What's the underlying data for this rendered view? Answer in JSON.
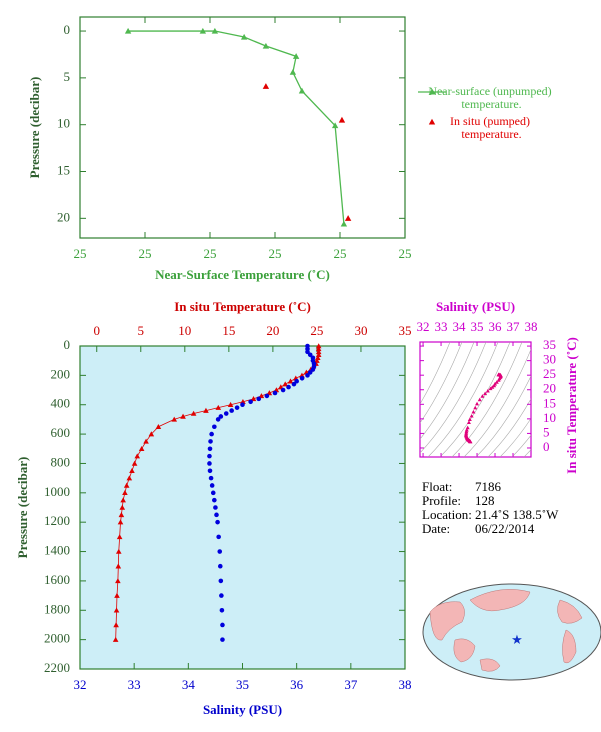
{
  "chart_data": [
    {
      "type": "line",
      "xlabel": "Near-Surface Temperature (˚C)",
      "ylabel": "Pressure (decibar)",
      "xlim": [
        24.5,
        25.5
      ],
      "xticks": [
        {
          "value": 24.5,
          "label": "25"
        },
        {
          "value": 24.7,
          "label": "25"
        },
        {
          "value": 24.9,
          "label": "25"
        },
        {
          "value": 25.1,
          "label": "25"
        },
        {
          "value": 25.3,
          "label": "25"
        },
        {
          "value": 25.5,
          "label": "25"
        }
      ],
      "ylim": [
        -1.5,
        22.1
      ],
      "yticks": [
        0,
        5,
        10,
        15,
        20
      ],
      "y_inverted": true,
      "legend": "right",
      "series": [
        {
          "name": "Near-surface (unpumped) temperature.",
          "color": "#4fb84f",
          "marker": "triangle",
          "connected": true,
          "values": [
            24.648,
            24.878,
            24.915,
            25.005,
            25.072,
            25.165,
            25.155,
            25.183,
            25.285,
            25.312
          ],
          "y": [
            0,
            0,
            0,
            0.64,
            1.6,
            2.7,
            4.4,
            6.4,
            10.1,
            20.6
          ]
        },
        {
          "name": "In situ (pumped) temperature.",
          "color": "#e00000",
          "marker": "triangle",
          "connected": false,
          "values": [
            25.072,
            25.306,
            25.325
          ],
          "y": [
            5.9,
            9.5,
            20.0
          ]
        }
      ]
    },
    {
      "type": "line",
      "xlabel": "Salinity (PSU)",
      "x2label": "In situ Temperature (˚C)",
      "ylabel": "Pressure (decibar)",
      "xlim": [
        32,
        38
      ],
      "xticks": [
        32,
        33,
        34,
        35,
        36,
        37,
        38
      ],
      "x2lim": [
        -1.9,
        35
      ],
      "x2ticks": [
        0,
        5,
        10,
        15,
        20,
        25,
        30,
        35
      ],
      "ylim": [
        0,
        2200
      ],
      "yticks": [
        0,
        200,
        400,
        600,
        800,
        1000,
        1200,
        1400,
        1600,
        1800,
        2000,
        2200
      ],
      "y_inverted": true,
      "y": [
        0,
        20,
        40,
        60,
        80,
        100,
        120,
        140,
        160,
        180,
        200,
        220,
        240,
        260,
        280,
        300,
        320,
        340,
        360,
        380,
        400,
        420,
        440,
        460,
        480,
        500,
        550,
        600,
        650,
        700,
        750,
        800,
        850,
        900,
        950,
        1000,
        1050,
        1100,
        1150,
        1200,
        1300,
        1400,
        1500,
        1600,
        1700,
        1800,
        1900,
        2000
      ],
      "series": [
        {
          "name": "In situ Temperature",
          "axis": "x2",
          "color": "#e00000",
          "marker": "triangle",
          "connected": true,
          "values": [
            25.2,
            25.2,
            25.2,
            25.2,
            25.1,
            25.0,
            24.9,
            24.6,
            24.3,
            23.8,
            23.3,
            22.6,
            22.0,
            21.4,
            20.9,
            20.4,
            19.6,
            18.7,
            17.8,
            16.6,
            15.2,
            13.8,
            12.4,
            11.0,
            9.8,
            8.8,
            7.0,
            6.2,
            5.6,
            5.1,
            4.6,
            4.3,
            4.0,
            3.7,
            3.4,
            3.2,
            3.0,
            2.9,
            2.8,
            2.7,
            2.6,
            2.5,
            2.45,
            2.4,
            2.3,
            2.25,
            2.2,
            2.15
          ]
        },
        {
          "name": "Salinity",
          "color": "#0000dd",
          "marker": "circle",
          "connected": false,
          "values": [
            36.2,
            36.2,
            36.2,
            36.25,
            36.3,
            36.3,
            36.32,
            36.32,
            36.3,
            36.25,
            36.2,
            36.1,
            36.0,
            35.95,
            35.85,
            35.75,
            35.6,
            35.45,
            35.3,
            35.15,
            35.0,
            34.9,
            34.8,
            34.7,
            34.6,
            34.55,
            34.48,
            34.43,
            34.41,
            34.4,
            34.39,
            34.39,
            34.4,
            34.42,
            34.44,
            34.46,
            34.48,
            34.5,
            34.52,
            34.54,
            34.56,
            34.58,
            34.59,
            34.6,
            34.61,
            34.62,
            34.63,
            34.63
          ]
        }
      ]
    },
    {
      "type": "scatter",
      "xlabel": "Salinity (PSU)",
      "ylabel": "In situ Temperature (˚C)",
      "color": "#e0007a",
      "xlim": [
        31.83,
        38
      ],
      "xticks": [
        32,
        33,
        34,
        35,
        36,
        37,
        38
      ],
      "ylim": [
        -3.1,
        36.4
      ],
      "yticks": [
        0,
        5,
        10,
        15,
        20,
        25,
        30,
        35
      ]
    }
  ],
  "float_info": [
    {
      "label": "Float:",
      "value": "7186"
    },
    {
      "label": "Profile:",
      "value": "128"
    },
    {
      "label": "Location:",
      "value": "21.4˚S  138.5˚W"
    },
    {
      "label": "Date:",
      "value": "06/22/2014"
    }
  ]
}
